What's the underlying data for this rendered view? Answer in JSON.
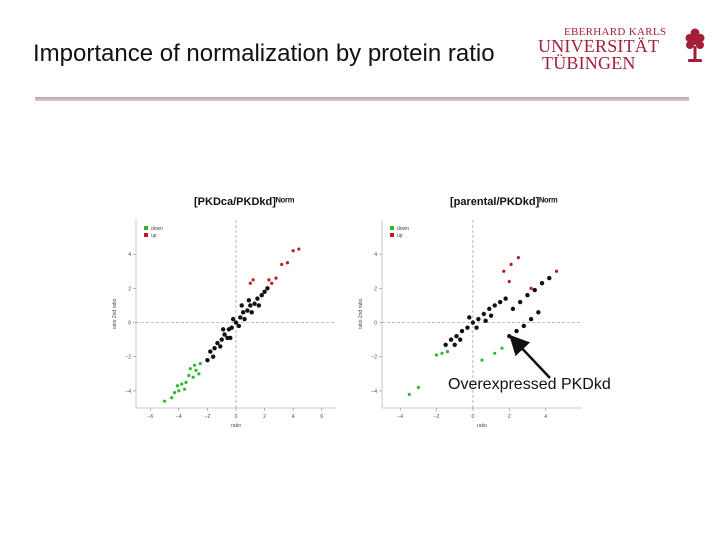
{
  "slide": {
    "title": "Importance of normalization by protein ratio",
    "logo": {
      "line1": "EBERHARD KARLS",
      "line2": "UNIVERSITÄT",
      "line3": "TÜBINGEN",
      "icon": "university-tree-seal-icon",
      "color": "#a51e37"
    },
    "annotation": "Overexpressed PKDkd"
  },
  "chart_data": [
    {
      "type": "scatter",
      "title": "[PKDca/PKDkd]ᴺᵒʳᵐ",
      "xlabel": "ratio",
      "ylabel": "ratio 2nd ratio",
      "xlim": [
        -7,
        7
      ],
      "ylim": [
        -5,
        6
      ],
      "xticks": [
        -6,
        -4,
        -2,
        0,
        2,
        4,
        6
      ],
      "xtick_labels": [
        "−6",
        "−4",
        "−2",
        "0",
        "2",
        "4",
        "6"
      ],
      "yticks": [
        -4,
        -2,
        0,
        2,
        4
      ],
      "ytick_labels": [
        "−4",
        "−2",
        "0",
        "2",
        "4"
      ],
      "reference_lines": {
        "vertical_x": 0,
        "horizontal_y": 0,
        "style": "dashed"
      },
      "legend": {
        "position": "top-left",
        "entries": [
          "down",
          "up"
        ]
      },
      "colors": {
        "black": "#111111",
        "down": "#2db82d",
        "up": "#c0181f"
      },
      "series": [
        {
          "name": "",
          "role": "black",
          "points": [
            [
              0,
              0
            ],
            [
              0.3,
              0.3
            ],
            [
              -0.3,
              -0.3
            ],
            [
              0.5,
              0.6
            ],
            [
              -0.5,
              -0.4
            ],
            [
              0.8,
              0.7
            ],
            [
              -0.8,
              -0.7
            ],
            [
              1,
              1
            ],
            [
              -1,
              -1
            ],
            [
              1.3,
              1.1
            ],
            [
              -1.3,
              -1.2
            ],
            [
              1.5,
              1.4
            ],
            [
              -1.5,
              -1.5
            ],
            [
              1.8,
              1.6
            ],
            [
              -1.8,
              -1.7
            ],
            [
              2,
              1.8
            ],
            [
              0.2,
              -0.2
            ],
            [
              -0.2,
              0.2
            ],
            [
              0.6,
              0.2
            ],
            [
              -0.6,
              -0.9
            ],
            [
              1.1,
              0.6
            ],
            [
              -1.1,
              -1.4
            ],
            [
              0.4,
              1.0
            ],
            [
              -0.4,
              -0.9
            ],
            [
              1.6,
              1.0
            ],
            [
              -1.6,
              -2.0
            ],
            [
              2.2,
              2.0
            ],
            [
              -2,
              -2.2
            ],
            [
              0.9,
              1.3
            ],
            [
              -0.9,
              -0.4
            ]
          ]
        },
        {
          "name": "down",
          "role": "down",
          "points": [
            [
              -2.5,
              -2.4
            ],
            [
              -2.8,
              -2.8
            ],
            [
              -3.0,
              -3.2
            ],
            [
              -3.3,
              -3.1
            ],
            [
              -3.5,
              -3.5
            ],
            [
              -3.8,
              -3.6
            ],
            [
              -4.0,
              -4.0
            ],
            [
              -4.3,
              -4.1
            ],
            [
              -4.5,
              -4.4
            ],
            [
              -5.0,
              -4.6
            ],
            [
              -2.6,
              -3.0
            ],
            [
              -3.2,
              -2.7
            ],
            [
              -3.6,
              -3.9
            ],
            [
              -4.1,
              -3.7
            ],
            [
              -2.9,
              -2.5
            ]
          ]
        },
        {
          "name": "up",
          "role": "up",
          "points": [
            [
              2.3,
              2.5
            ],
            [
              2.8,
              2.6
            ],
            [
              3.2,
              3.4
            ],
            [
              3.6,
              3.5
            ],
            [
              4.0,
              4.2
            ],
            [
              4.4,
              4.3
            ],
            [
              1.2,
              2.5
            ],
            [
              1.0,
              2.3
            ],
            [
              2.5,
              2.3
            ]
          ]
        }
      ]
    },
    {
      "type": "scatter",
      "title": "[parental/PKDkd]ᴺᵒʳᵐ",
      "xlabel": "ratio",
      "ylabel": "ratio 2nd ratio",
      "xlim": [
        -5,
        6
      ],
      "ylim": [
        -5,
        6
      ],
      "xticks": [
        -4,
        -2,
        0,
        2,
        4
      ],
      "xtick_labels": [
        "−4",
        "−2",
        "0",
        "2",
        "4"
      ],
      "yticks": [
        -4,
        -2,
        0,
        2,
        4
      ],
      "ytick_labels": [
        "−4",
        "−2",
        "0",
        "2",
        "4"
      ],
      "reference_lines": {
        "vertical_x": 0,
        "horizontal_y": 0,
        "style": "dashed"
      },
      "legend": {
        "position": "top-left",
        "entries": [
          "down",
          "up"
        ]
      },
      "colors": {
        "black": "#111111",
        "down": "#2db82d",
        "up": "#c0181f"
      },
      "series": [
        {
          "name": "",
          "role": "black",
          "points": [
            [
              0,
              0
            ],
            [
              0.3,
              0.2
            ],
            [
              -0.3,
              -0.3
            ],
            [
              0.6,
              0.5
            ],
            [
              -0.6,
              -0.5
            ],
            [
              0.9,
              0.8
            ],
            [
              -0.9,
              -0.8
            ],
            [
              1.2,
              1.0
            ],
            [
              -1.2,
              -1.0
            ],
            [
              1.5,
              1.2
            ],
            [
              -1.5,
              -1.3
            ],
            [
              0.2,
              -0.3
            ],
            [
              -0.2,
              0.3
            ],
            [
              0.7,
              0.1
            ],
            [
              -0.7,
              -1.0
            ],
            [
              1.0,
              0.4
            ],
            [
              -1.0,
              -1.3
            ],
            [
              1.8,
              1.4
            ],
            [
              2.2,
              0.8
            ],
            [
              2.6,
              1.2
            ],
            [
              3.0,
              1.6
            ],
            [
              3.4,
              1.9
            ],
            [
              3.8,
              2.3
            ],
            [
              4.2,
              2.6
            ],
            [
              2.0,
              -0.8
            ],
            [
              2.4,
              -0.5
            ],
            [
              2.8,
              -0.2
            ],
            [
              3.2,
              0.2
            ],
            [
              3.6,
              0.6
            ]
          ]
        },
        {
          "name": "down",
          "role": "down",
          "points": [
            [
              -1.7,
              -1.8
            ],
            [
              -2.0,
              -1.9
            ],
            [
              -1.4,
              -1.7
            ],
            [
              -3.0,
              -3.8
            ],
            [
              -3.5,
              -4.2
            ],
            [
              0.5,
              -2.2
            ],
            [
              1.2,
              -1.8
            ],
            [
              1.6,
              -1.5
            ]
          ]
        },
        {
          "name": "up",
          "role": "up",
          "points": [
            [
              1.7,
              3.0
            ],
            [
              2.1,
              3.4
            ],
            [
              2.5,
              3.8
            ],
            [
              2.0,
              2.4
            ],
            [
              4.6,
              3.0
            ],
            [
              3.2,
              2.0
            ]
          ]
        }
      ]
    }
  ]
}
